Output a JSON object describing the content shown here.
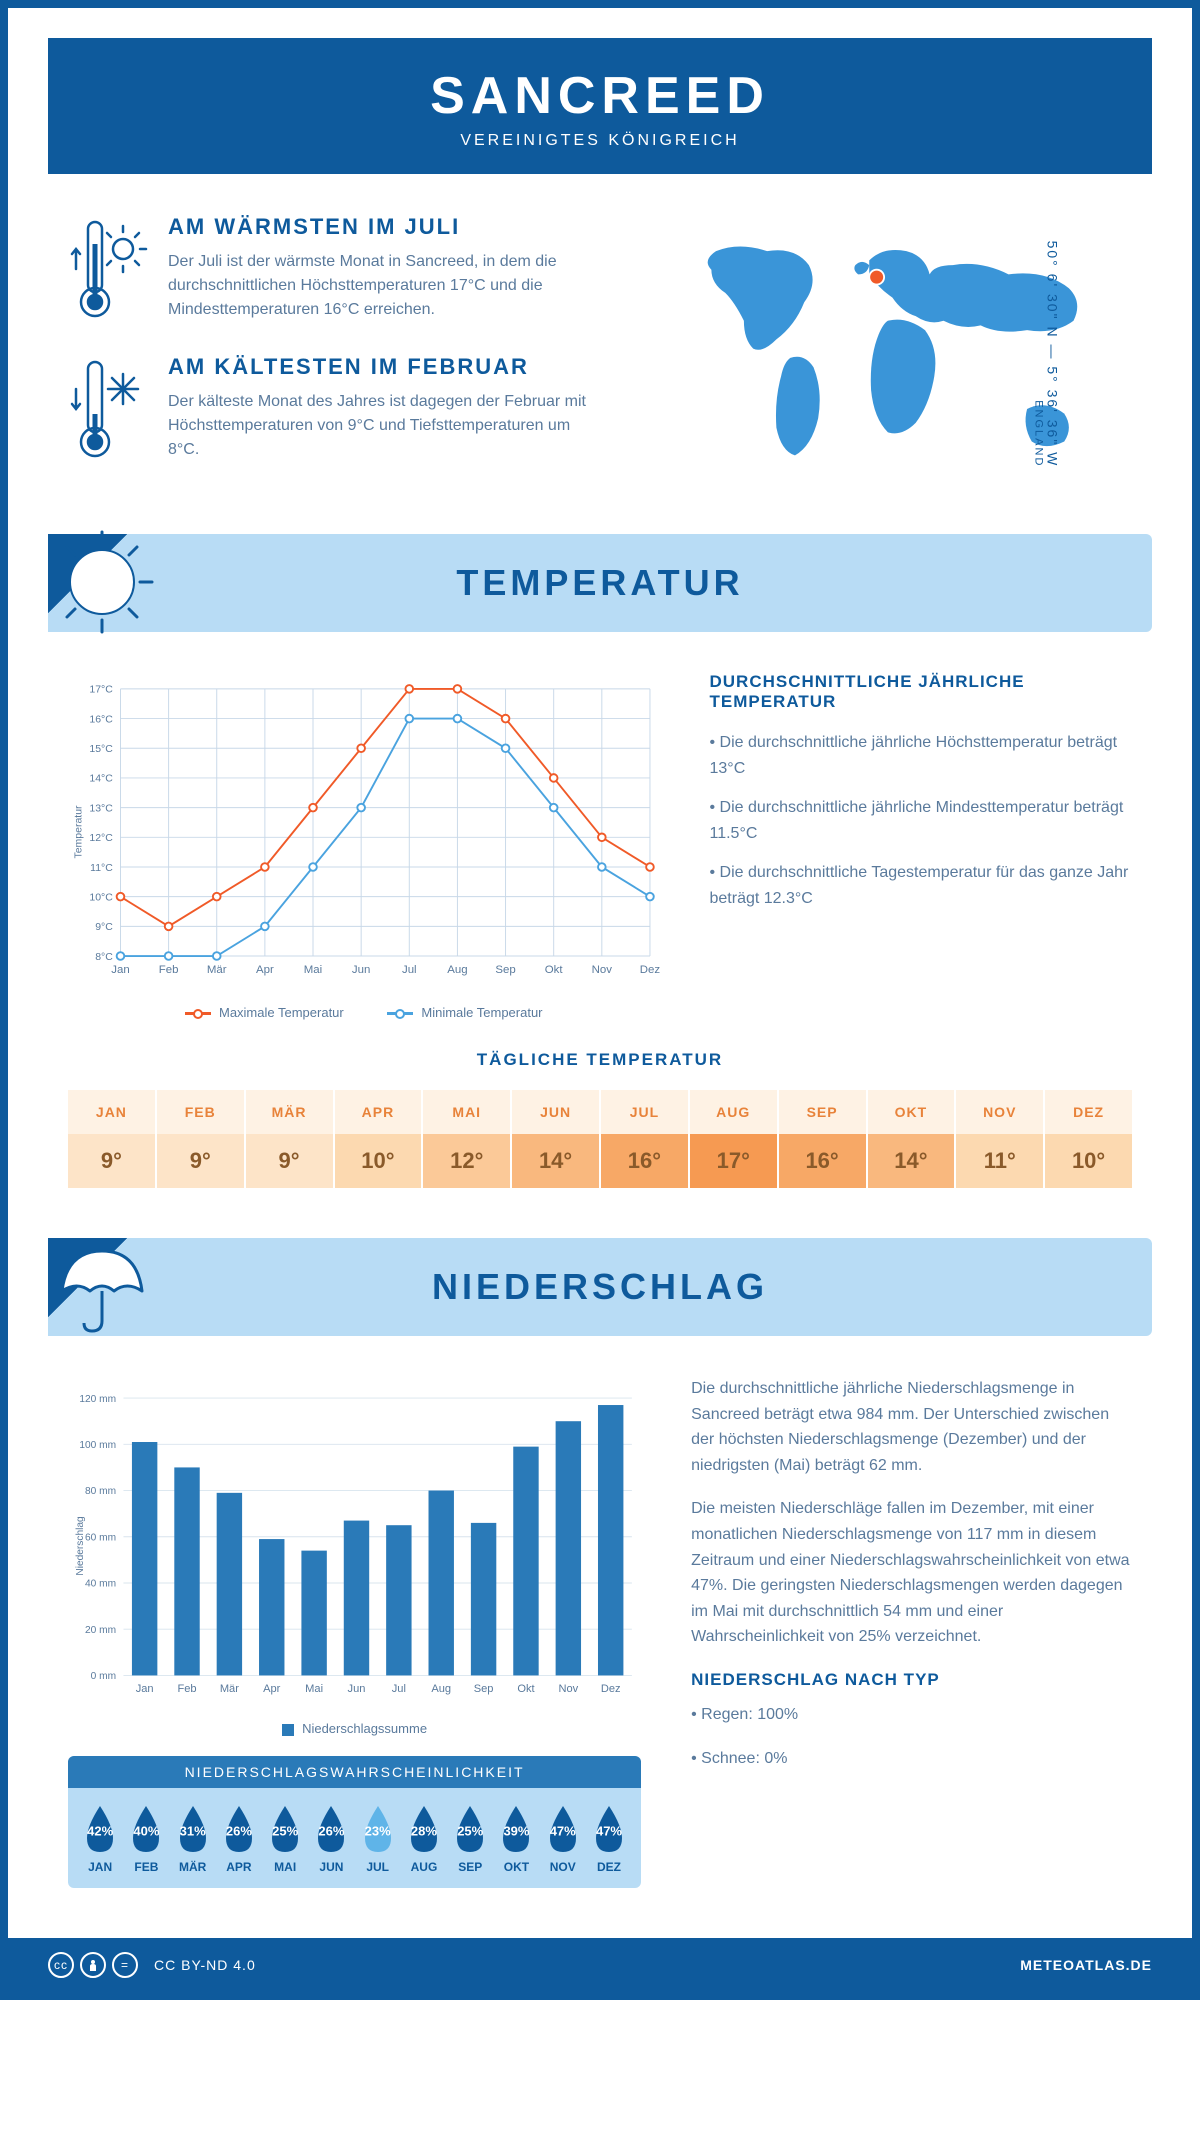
{
  "header": {
    "title": "SANCREED",
    "subtitle": "VEREINIGTES KÖNIGREICH"
  },
  "coords": {
    "text": "50° 6' 30\" N — 5° 36' 36\" W",
    "region": "ENGLAND"
  },
  "warmest": {
    "heading": "AM WÄRMSTEN IM JULI",
    "text": "Der Juli ist der wärmste Monat in Sancreed, in dem die durchschnittlichen Höchsttemperaturen 17°C und die Mindesttemperaturen 16°C erreichen."
  },
  "coldest": {
    "heading": "AM KÄLTESTEN IM FEBRUAR",
    "text": "Der kälteste Monat des Jahres ist dagegen der Februar mit Höchsttemperaturen von 9°C und Tiefsttemperaturen um 8°C."
  },
  "sections": {
    "temperature": "TEMPERATUR",
    "precipitation": "NIEDERSCHLAG"
  },
  "temp_chart": {
    "type": "line",
    "months": [
      "Jan",
      "Feb",
      "Mär",
      "Apr",
      "Mai",
      "Jun",
      "Jul",
      "Aug",
      "Sep",
      "Okt",
      "Nov",
      "Dez"
    ],
    "max_series": [
      10,
      9,
      10,
      11,
      13,
      15,
      17,
      17,
      16,
      14,
      12,
      11
    ],
    "min_series": [
      8,
      8,
      8,
      9,
      11,
      13,
      16,
      16,
      15,
      13,
      11,
      10
    ],
    "ylim": [
      8,
      17
    ],
    "ytick_step": 1,
    "ylabel": "Temperatur",
    "max_color": "#f05a28",
    "min_color": "#4aa3df",
    "grid_color": "#c8d8e8",
    "background_color": "#ffffff",
    "line_width": 2,
    "marker_size": 4,
    "label_fontsize": 12,
    "legend_max": "Maximale Temperatur",
    "legend_min": "Minimale Temperatur"
  },
  "temp_text": {
    "heading": "DURCHSCHNITTLICHE JÄHRLICHE TEMPERATUR",
    "bullets": [
      "Die durchschnittliche jährliche Höchsttemperatur beträgt 13°C",
      "Die durchschnittliche jährliche Mindesttemperatur beträgt 11.5°C",
      "Die durchschnittliche Tagestemperatur für das ganze Jahr beträgt 12.3°C"
    ]
  },
  "daily_temp": {
    "heading": "TÄGLICHE TEMPERATUR",
    "months": [
      "JAN",
      "FEB",
      "MÄR",
      "APR",
      "MAI",
      "JUN",
      "JUL",
      "AUG",
      "SEP",
      "OKT",
      "NOV",
      "DEZ"
    ],
    "values": [
      "9°",
      "9°",
      "9°",
      "10°",
      "12°",
      "14°",
      "16°",
      "17°",
      "16°",
      "14°",
      "11°",
      "10°"
    ],
    "cell_colors": [
      "#fde4c8",
      "#fde4c8",
      "#fde4c8",
      "#fcd9b0",
      "#fbc998",
      "#f9b87e",
      "#f7a866",
      "#f69a52",
      "#f7a866",
      "#f9b87e",
      "#fcd9b0",
      "#fcd9b0"
    ],
    "head_bg": "#fef2e4"
  },
  "precip_chart": {
    "type": "bar",
    "months": [
      "Jan",
      "Feb",
      "Mär",
      "Apr",
      "Mai",
      "Jun",
      "Jul",
      "Aug",
      "Sep",
      "Okt",
      "Nov",
      "Dez"
    ],
    "values": [
      101,
      90,
      79,
      59,
      54,
      67,
      65,
      80,
      66,
      99,
      110,
      117
    ],
    "ylim": [
      0,
      120
    ],
    "ytick_step": 20,
    "ytick_suffix": " mm",
    "ylabel": "Niederschlag",
    "bar_color": "#2a7ab8",
    "grid_color": "#d8e4ee",
    "background_color": "#ffffff",
    "bar_width": 0.6,
    "label_fontsize": 12,
    "legend": "Niederschlagssumme"
  },
  "precip_text": {
    "para1": "Die durchschnittliche jährliche Niederschlagsmenge in Sancreed beträgt etwa 984 mm. Der Unterschied zwischen der höchsten Niederschlagsmenge (Dezember) und der niedrigsten (Mai) beträgt 62 mm.",
    "para2": "Die meisten Niederschläge fallen im Dezember, mit einer monatlichen Niederschlagsmenge von 117 mm in diesem Zeitraum und einer Niederschlagswahrscheinlichkeit von etwa 47%. Die geringsten Niederschlagsmengen werden dagegen im Mai mit durchschnittlich 54 mm und einer Wahrscheinlichkeit von 25% verzeichnet.",
    "type_heading": "NIEDERSCHLAG NACH TYP",
    "type_rain": "Regen: 100%",
    "type_snow": "Schnee: 0%"
  },
  "probability": {
    "heading": "NIEDERSCHLAGSWAHRSCHEINLICHKEIT",
    "months": [
      "JAN",
      "FEB",
      "MÄR",
      "APR",
      "MAI",
      "JUN",
      "JUL",
      "AUG",
      "SEP",
      "OKT",
      "NOV",
      "DEZ"
    ],
    "values": [
      "42%",
      "40%",
      "31%",
      "26%",
      "25%",
      "26%",
      "23%",
      "28%",
      "25%",
      "39%",
      "47%",
      "47%"
    ],
    "drop_color_dark": "#0e5a9c",
    "drop_color_light": "#5fb4e8",
    "min_index": 6
  },
  "footer": {
    "license": "CC BY-ND 4.0",
    "site": "METEOATLAS.DE"
  },
  "colors": {
    "brand": "#0e5a9c",
    "banner_bg": "#b8dcf5",
    "text_muted": "#5a7a9c"
  }
}
